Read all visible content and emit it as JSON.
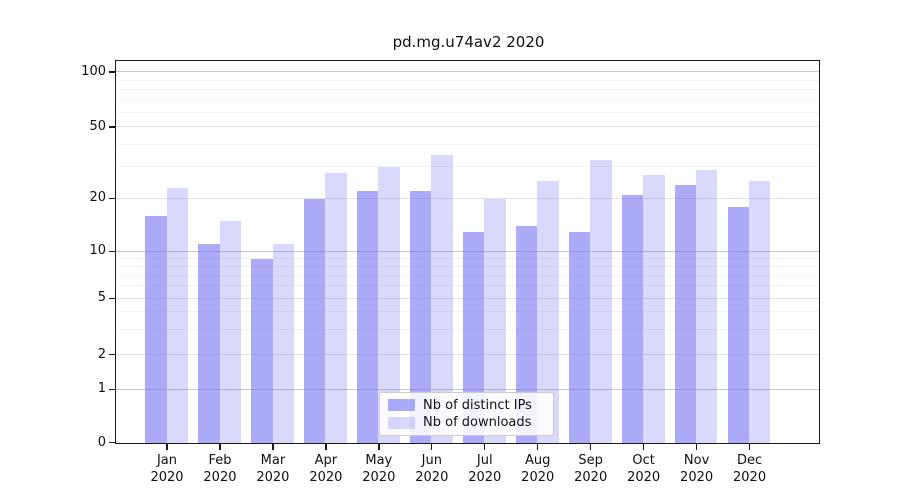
{
  "title": "pd.mg.u74av2 2020",
  "chart_data": {
    "type": "bar",
    "title": "pd.mg.u74av2 2020",
    "categories": [
      "Jan",
      "Feb",
      "Mar",
      "Apr",
      "May",
      "Jun",
      "Jul",
      "Aug",
      "Sep",
      "Oct",
      "Nov",
      "Dec"
    ],
    "year_label": "2020",
    "series": [
      {
        "name": "Nb of distinct IPs",
        "color": "rgba(102,102,240,0.55)",
        "values": [
          16,
          11,
          9,
          20,
          22,
          22,
          13,
          14,
          13,
          21,
          24,
          18
        ]
      },
      {
        "name": "Nb of downloads",
        "color": "rgba(102,102,240,0.25)",
        "values": [
          23,
          15,
          11,
          28,
          30,
          35,
          20,
          25,
          33,
          27,
          29,
          25
        ]
      }
    ],
    "yscale": "asinh",
    "y_tick_labels": [
      "0",
      "1",
      "2",
      "5",
      "10",
      "20",
      "50",
      "100"
    ],
    "y_ticks": [
      0,
      1,
      2,
      5,
      10,
      20,
      50,
      100
    ],
    "y_minor_ticks": [
      3,
      4,
      6,
      7,
      8,
      9,
      30,
      40,
      60,
      70,
      80,
      90
    ],
    "ylim": [
      0,
      114
    ],
    "grid": "on",
    "legend_position": "lower center"
  },
  "colors": {
    "bar_base": "#6666f0",
    "axis": "#1a1a1a",
    "grid_major": "#c9c9c9",
    "grid_minor": "#f2f2f2"
  }
}
